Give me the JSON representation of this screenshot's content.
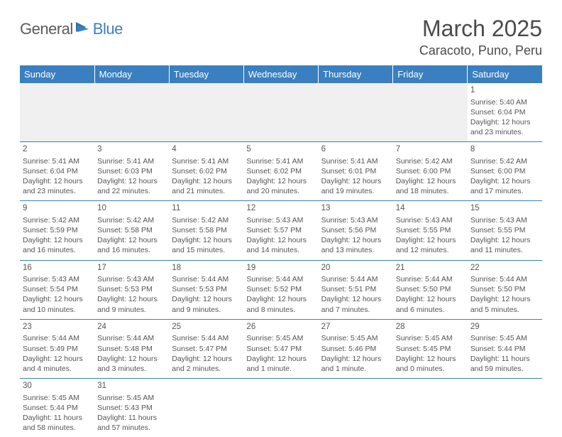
{
  "logo": {
    "general": "General",
    "blue": "Blue"
  },
  "title": "March 2025",
  "location": "Caracoto, Puno, Peru",
  "colors": {
    "header_bg": "#3a7fbf",
    "header_fg": "#ffffff",
    "text": "#555555",
    "rule": "#3a7fbf",
    "blank_bg": "#f0f0f0"
  },
  "weekdays": [
    "Sunday",
    "Monday",
    "Tuesday",
    "Wednesday",
    "Thursday",
    "Friday",
    "Saturday"
  ],
  "weeks": [
    [
      null,
      null,
      null,
      null,
      null,
      null,
      {
        "n": "1",
        "sr": "Sunrise: 5:40 AM",
        "ss": "Sunset: 6:04 PM",
        "dl": "Daylight: 12 hours and 23 minutes."
      }
    ],
    [
      {
        "n": "2",
        "sr": "Sunrise: 5:41 AM",
        "ss": "Sunset: 6:04 PM",
        "dl": "Daylight: 12 hours and 23 minutes."
      },
      {
        "n": "3",
        "sr": "Sunrise: 5:41 AM",
        "ss": "Sunset: 6:03 PM",
        "dl": "Daylight: 12 hours and 22 minutes."
      },
      {
        "n": "4",
        "sr": "Sunrise: 5:41 AM",
        "ss": "Sunset: 6:02 PM",
        "dl": "Daylight: 12 hours and 21 minutes."
      },
      {
        "n": "5",
        "sr": "Sunrise: 5:41 AM",
        "ss": "Sunset: 6:02 PM",
        "dl": "Daylight: 12 hours and 20 minutes."
      },
      {
        "n": "6",
        "sr": "Sunrise: 5:41 AM",
        "ss": "Sunset: 6:01 PM",
        "dl": "Daylight: 12 hours and 19 minutes."
      },
      {
        "n": "7",
        "sr": "Sunrise: 5:42 AM",
        "ss": "Sunset: 6:00 PM",
        "dl": "Daylight: 12 hours and 18 minutes."
      },
      {
        "n": "8",
        "sr": "Sunrise: 5:42 AM",
        "ss": "Sunset: 6:00 PM",
        "dl": "Daylight: 12 hours and 17 minutes."
      }
    ],
    [
      {
        "n": "9",
        "sr": "Sunrise: 5:42 AM",
        "ss": "Sunset: 5:59 PM",
        "dl": "Daylight: 12 hours and 16 minutes."
      },
      {
        "n": "10",
        "sr": "Sunrise: 5:42 AM",
        "ss": "Sunset: 5:58 PM",
        "dl": "Daylight: 12 hours and 16 minutes."
      },
      {
        "n": "11",
        "sr": "Sunrise: 5:42 AM",
        "ss": "Sunset: 5:58 PM",
        "dl": "Daylight: 12 hours and 15 minutes."
      },
      {
        "n": "12",
        "sr": "Sunrise: 5:43 AM",
        "ss": "Sunset: 5:57 PM",
        "dl": "Daylight: 12 hours and 14 minutes."
      },
      {
        "n": "13",
        "sr": "Sunrise: 5:43 AM",
        "ss": "Sunset: 5:56 PM",
        "dl": "Daylight: 12 hours and 13 minutes."
      },
      {
        "n": "14",
        "sr": "Sunrise: 5:43 AM",
        "ss": "Sunset: 5:55 PM",
        "dl": "Daylight: 12 hours and 12 minutes."
      },
      {
        "n": "15",
        "sr": "Sunrise: 5:43 AM",
        "ss": "Sunset: 5:55 PM",
        "dl": "Daylight: 12 hours and 11 minutes."
      }
    ],
    [
      {
        "n": "16",
        "sr": "Sunrise: 5:43 AM",
        "ss": "Sunset: 5:54 PM",
        "dl": "Daylight: 12 hours and 10 minutes."
      },
      {
        "n": "17",
        "sr": "Sunrise: 5:43 AM",
        "ss": "Sunset: 5:53 PM",
        "dl": "Daylight: 12 hours and 9 minutes."
      },
      {
        "n": "18",
        "sr": "Sunrise: 5:44 AM",
        "ss": "Sunset: 5:53 PM",
        "dl": "Daylight: 12 hours and 9 minutes."
      },
      {
        "n": "19",
        "sr": "Sunrise: 5:44 AM",
        "ss": "Sunset: 5:52 PM",
        "dl": "Daylight: 12 hours and 8 minutes."
      },
      {
        "n": "20",
        "sr": "Sunrise: 5:44 AM",
        "ss": "Sunset: 5:51 PM",
        "dl": "Daylight: 12 hours and 7 minutes."
      },
      {
        "n": "21",
        "sr": "Sunrise: 5:44 AM",
        "ss": "Sunset: 5:50 PM",
        "dl": "Daylight: 12 hours and 6 minutes."
      },
      {
        "n": "22",
        "sr": "Sunrise: 5:44 AM",
        "ss": "Sunset: 5:50 PM",
        "dl": "Daylight: 12 hours and 5 minutes."
      }
    ],
    [
      {
        "n": "23",
        "sr": "Sunrise: 5:44 AM",
        "ss": "Sunset: 5:49 PM",
        "dl": "Daylight: 12 hours and 4 minutes."
      },
      {
        "n": "24",
        "sr": "Sunrise: 5:44 AM",
        "ss": "Sunset: 5:48 PM",
        "dl": "Daylight: 12 hours and 3 minutes."
      },
      {
        "n": "25",
        "sr": "Sunrise: 5:44 AM",
        "ss": "Sunset: 5:47 PM",
        "dl": "Daylight: 12 hours and 2 minutes."
      },
      {
        "n": "26",
        "sr": "Sunrise: 5:45 AM",
        "ss": "Sunset: 5:47 PM",
        "dl": "Daylight: 12 hours and 1 minute."
      },
      {
        "n": "27",
        "sr": "Sunrise: 5:45 AM",
        "ss": "Sunset: 5:46 PM",
        "dl": "Daylight: 12 hours and 1 minute."
      },
      {
        "n": "28",
        "sr": "Sunrise: 5:45 AM",
        "ss": "Sunset: 5:45 PM",
        "dl": "Daylight: 12 hours and 0 minutes."
      },
      {
        "n": "29",
        "sr": "Sunrise: 5:45 AM",
        "ss": "Sunset: 5:44 PM",
        "dl": "Daylight: 11 hours and 59 minutes."
      }
    ],
    [
      {
        "n": "30",
        "sr": "Sunrise: 5:45 AM",
        "ss": "Sunset: 5:44 PM",
        "dl": "Daylight: 11 hours and 58 minutes."
      },
      {
        "n": "31",
        "sr": "Sunrise: 5:45 AM",
        "ss": "Sunset: 5:43 PM",
        "dl": "Daylight: 11 hours and 57 minutes."
      },
      null,
      null,
      null,
      null,
      null
    ]
  ]
}
